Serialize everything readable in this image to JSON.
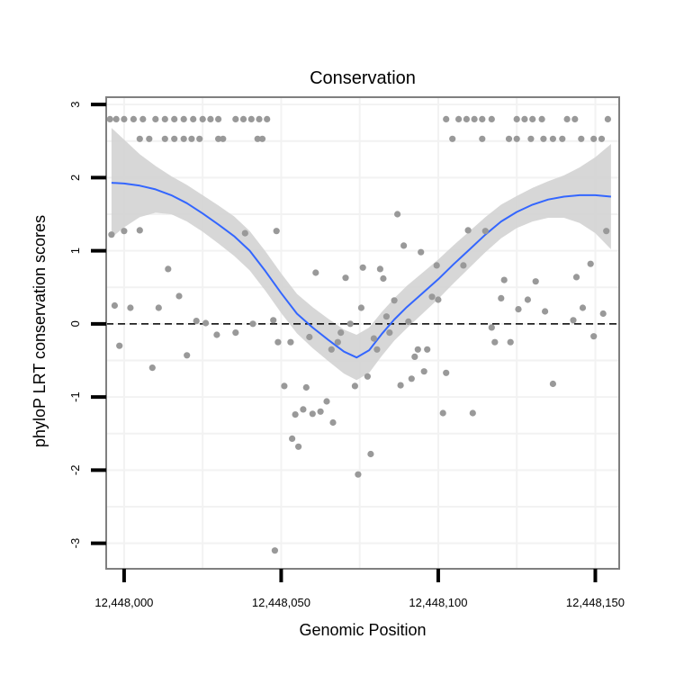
{
  "chart_data": {
    "type": "scatter",
    "title": "Conservation",
    "xlabel": "Genomic Position",
    "ylabel": "phyloP LRT conservation scores",
    "xlim": [
      12447994.3,
      12448157.6
    ],
    "ylim": [
      -3.35,
      3.1
    ],
    "x_ticks": [
      12448000,
      12448050,
      12448100,
      12448150
    ],
    "x_tick_labels": [
      "12,448,000",
      "12,448,050",
      "12,448,100",
      "12,448,150"
    ],
    "y_ticks": [
      -3,
      -2,
      -1,
      0,
      1,
      2,
      3
    ],
    "y_tick_labels": [
      "-3",
      "-2",
      "-1",
      "0",
      "1",
      "2",
      "3"
    ],
    "reference_line_y": 0,
    "colors": {
      "points": "#999999",
      "smooth_line": "#3366FF",
      "confidence_band": "#D3D3D3",
      "grid": "#F2F2F2",
      "frame": "#7F7F7F",
      "reference_line": "#000000"
    },
    "points": [
      {
        "x": 12447995.5,
        "y": 2.8
      },
      {
        "x": 12447997.5,
        "y": 2.8
      },
      {
        "x": 12448000.0,
        "y": 2.8
      },
      {
        "x": 12448003.0,
        "y": 2.8
      },
      {
        "x": 12448006.0,
        "y": 2.8
      },
      {
        "x": 12448010.0,
        "y": 2.8
      },
      {
        "x": 12448013.0,
        "y": 2.8
      },
      {
        "x": 12448016.0,
        "y": 2.8
      },
      {
        "x": 12448019.0,
        "y": 2.8
      },
      {
        "x": 12448022.0,
        "y": 2.8
      },
      {
        "x": 12448025.0,
        "y": 2.8
      },
      {
        "x": 12448027.5,
        "y": 2.8
      },
      {
        "x": 12448030.0,
        "y": 2.8
      },
      {
        "x": 12448035.5,
        "y": 2.8
      },
      {
        "x": 12448038.0,
        "y": 2.8
      },
      {
        "x": 12448040.5,
        "y": 2.8
      },
      {
        "x": 12448043.0,
        "y": 2.8
      },
      {
        "x": 12448045.5,
        "y": 2.8
      },
      {
        "x": 12448005.0,
        "y": 2.53
      },
      {
        "x": 12448008.0,
        "y": 2.53
      },
      {
        "x": 12448013.0,
        "y": 2.53
      },
      {
        "x": 12448016.0,
        "y": 2.53
      },
      {
        "x": 12448019.0,
        "y": 2.53
      },
      {
        "x": 12448021.5,
        "y": 2.53
      },
      {
        "x": 12448024.0,
        "y": 2.53
      },
      {
        "x": 12448030.0,
        "y": 2.53
      },
      {
        "x": 12448031.5,
        "y": 2.53
      },
      {
        "x": 12448042.5,
        "y": 2.53
      },
      {
        "x": 12448044.0,
        "y": 2.53
      },
      {
        "x": 12448102.5,
        "y": 2.8
      },
      {
        "x": 12448106.5,
        "y": 2.8
      },
      {
        "x": 12448109.0,
        "y": 2.8
      },
      {
        "x": 12448111.5,
        "y": 2.8
      },
      {
        "x": 12448114.0,
        "y": 2.8
      },
      {
        "x": 12448117.0,
        "y": 2.8
      },
      {
        "x": 12448125.0,
        "y": 2.8
      },
      {
        "x": 12448127.5,
        "y": 2.8
      },
      {
        "x": 12448130.0,
        "y": 2.8
      },
      {
        "x": 12448133.0,
        "y": 2.8
      },
      {
        "x": 12448141.0,
        "y": 2.8
      },
      {
        "x": 12448143.5,
        "y": 2.8
      },
      {
        "x": 12448154.0,
        "y": 2.8
      },
      {
        "x": 12448104.5,
        "y": 2.53
      },
      {
        "x": 12448114.0,
        "y": 2.53
      },
      {
        "x": 12448122.5,
        "y": 2.53
      },
      {
        "x": 12448125.0,
        "y": 2.53
      },
      {
        "x": 12448129.5,
        "y": 2.53
      },
      {
        "x": 12448133.5,
        "y": 2.53
      },
      {
        "x": 12448136.5,
        "y": 2.53
      },
      {
        "x": 12448139.5,
        "y": 2.53
      },
      {
        "x": 12448145.5,
        "y": 2.53
      },
      {
        "x": 12448149.5,
        "y": 2.53
      },
      {
        "x": 12448152.0,
        "y": 2.53
      },
      {
        "x": 12447996.0,
        "y": 1.22
      },
      {
        "x": 12448000.0,
        "y": 1.27
      },
      {
        "x": 12448005.0,
        "y": 1.28
      },
      {
        "x": 12447997.0,
        "y": 0.25
      },
      {
        "x": 12448002.0,
        "y": 0.22
      },
      {
        "x": 12447998.5,
        "y": -0.3
      },
      {
        "x": 12448009.0,
        "y": -0.6
      },
      {
        "x": 12448014.0,
        "y": 0.75
      },
      {
        "x": 12448017.5,
        "y": 0.38
      },
      {
        "x": 12448011.0,
        "y": 0.22
      },
      {
        "x": 12448020.0,
        "y": -0.43
      },
      {
        "x": 12448023.0,
        "y": 0.04
      },
      {
        "x": 12448026.0,
        "y": 0.01
      },
      {
        "x": 12448029.5,
        "y": -0.15
      },
      {
        "x": 12448035.5,
        "y": -0.12
      },
      {
        "x": 12448038.5,
        "y": 1.24
      },
      {
        "x": 12448041.0,
        "y": 0.0
      },
      {
        "x": 12448047.5,
        "y": 0.05
      },
      {
        "x": 12448048.5,
        "y": 1.27
      },
      {
        "x": 12448049.0,
        "y": -0.25
      },
      {
        "x": 12448051.0,
        "y": -0.85
      },
      {
        "x": 12448053.0,
        "y": -0.25
      },
      {
        "x": 12448048.0,
        "y": -3.1
      },
      {
        "x": 12448053.5,
        "y": -1.57
      },
      {
        "x": 12448054.5,
        "y": -1.24
      },
      {
        "x": 12448055.5,
        "y": -1.68
      },
      {
        "x": 12448057.0,
        "y": -1.17
      },
      {
        "x": 12448058.0,
        "y": -0.87
      },
      {
        "x": 12448059.0,
        "y": -0.18
      },
      {
        "x": 12448061.0,
        "y": 0.7
      },
      {
        "x": 12448060.0,
        "y": -1.23
      },
      {
        "x": 12448062.5,
        "y": -1.2
      },
      {
        "x": 12448064.5,
        "y": -1.06
      },
      {
        "x": 12448066.0,
        "y": -0.35
      },
      {
        "x": 12448066.5,
        "y": -1.35
      },
      {
        "x": 12448068.0,
        "y": -0.25
      },
      {
        "x": 12448069.0,
        "y": -0.12
      },
      {
        "x": 12448070.5,
        "y": 0.63
      },
      {
        "x": 12448072.0,
        "y": 0.0
      },
      {
        "x": 12448073.5,
        "y": -0.85
      },
      {
        "x": 12448074.5,
        "y": -2.06
      },
      {
        "x": 12448075.5,
        "y": 0.22
      },
      {
        "x": 12448076.0,
        "y": 0.77
      },
      {
        "x": 12448077.5,
        "y": -0.72
      },
      {
        "x": 12448078.5,
        "y": -1.78
      },
      {
        "x": 12448079.5,
        "y": -0.2
      },
      {
        "x": 12448080.5,
        "y": -0.35
      },
      {
        "x": 12448081.5,
        "y": 0.75
      },
      {
        "x": 12448082.5,
        "y": 0.62
      },
      {
        "x": 12448083.5,
        "y": 0.1
      },
      {
        "x": 12448084.5,
        "y": -0.12
      },
      {
        "x": 12448086.0,
        "y": 0.32
      },
      {
        "x": 12448087.0,
        "y": 1.5
      },
      {
        "x": 12448088.0,
        "y": -0.84
      },
      {
        "x": 12448089.0,
        "y": 1.07
      },
      {
        "x": 12448090.5,
        "y": 0.03
      },
      {
        "x": 12448091.5,
        "y": -0.75
      },
      {
        "x": 12448092.5,
        "y": -0.45
      },
      {
        "x": 12448093.5,
        "y": -0.35
      },
      {
        "x": 12448094.5,
        "y": 0.98
      },
      {
        "x": 12448095.5,
        "y": -0.65
      },
      {
        "x": 12448096.5,
        "y": -0.35
      },
      {
        "x": 12448098.0,
        "y": 0.37
      },
      {
        "x": 12448099.5,
        "y": 0.8
      },
      {
        "x": 12448100.0,
        "y": 0.33
      },
      {
        "x": 12448101.5,
        "y": -1.22
      },
      {
        "x": 12448102.5,
        "y": -0.67
      },
      {
        "x": 12448108.0,
        "y": 0.8
      },
      {
        "x": 12448109.5,
        "y": 1.28
      },
      {
        "x": 12448111.0,
        "y": -1.22
      },
      {
        "x": 12448115.0,
        "y": 1.27
      },
      {
        "x": 12448117.0,
        "y": -0.05
      },
      {
        "x": 12448118.0,
        "y": -0.25
      },
      {
        "x": 12448120.0,
        "y": 0.35
      },
      {
        "x": 12448121.0,
        "y": 0.6
      },
      {
        "x": 12448123.0,
        "y": -0.25
      },
      {
        "x": 12448125.5,
        "y": 0.2
      },
      {
        "x": 12448128.5,
        "y": 0.33
      },
      {
        "x": 12448131.0,
        "y": 0.58
      },
      {
        "x": 12448134.0,
        "y": 0.17
      },
      {
        "x": 12448136.5,
        "y": -0.82
      },
      {
        "x": 12448143.0,
        "y": 0.05
      },
      {
        "x": 12448144.0,
        "y": 0.64
      },
      {
        "x": 12448146.0,
        "y": 0.22
      },
      {
        "x": 12448148.5,
        "y": 0.82
      },
      {
        "x": 12448149.5,
        "y": -0.17
      },
      {
        "x": 12448152.5,
        "y": 0.14
      },
      {
        "x": 12448153.5,
        "y": 1.27
      }
    ],
    "smooth_line": {
      "x": [
        12447996,
        12448000,
        12448005,
        12448010,
        12448015,
        12448020,
        12448025,
        12448030,
        12448035,
        12448040,
        12448045,
        12448050,
        12448055,
        12448060,
        12448065,
        12448070,
        12448074,
        12448078,
        12448082,
        12448086,
        12448090,
        12448095,
        12448100,
        12448105,
        12448110,
        12448115,
        12448120,
        12448125,
        12448130,
        12448135,
        12448140,
        12448145,
        12448150,
        12448155
      ],
      "y": [
        1.93,
        1.92,
        1.89,
        1.84,
        1.76,
        1.65,
        1.51,
        1.36,
        1.2,
        1.0,
        0.72,
        0.42,
        0.14,
        -0.05,
        -0.22,
        -0.38,
        -0.46,
        -0.36,
        -0.14,
        0.06,
        0.23,
        0.42,
        0.61,
        0.82,
        1.02,
        1.22,
        1.4,
        1.53,
        1.63,
        1.7,
        1.74,
        1.76,
        1.76,
        1.74
      ]
    },
    "confidence_band": {
      "x": [
        12447996,
        12448000,
        12448005,
        12448010,
        12448015,
        12448020,
        12448025,
        12448030,
        12448035,
        12448040,
        12448045,
        12448050,
        12448055,
        12448060,
        12448065,
        12448070,
        12448074,
        12448078,
        12448082,
        12448086,
        12448090,
        12448095,
        12448100,
        12448105,
        12448110,
        12448115,
        12448120,
        12448125,
        12448130,
        12448135,
        12448140,
        12448145,
        12448150,
        12448155
      ],
      "lower": [
        1.18,
        1.32,
        1.46,
        1.52,
        1.5,
        1.4,
        1.26,
        1.1,
        0.93,
        0.73,
        0.45,
        0.15,
        -0.13,
        -0.33,
        -0.51,
        -0.68,
        -0.77,
        -0.67,
        -0.44,
        -0.23,
        -0.06,
        0.14,
        0.34,
        0.56,
        0.77,
        0.98,
        1.17,
        1.31,
        1.4,
        1.45,
        1.45,
        1.38,
        1.24,
        1.02
      ],
      "upper": [
        2.68,
        2.52,
        2.32,
        2.16,
        2.02,
        1.9,
        1.76,
        1.62,
        1.47,
        1.27,
        0.99,
        0.69,
        0.41,
        0.23,
        0.07,
        -0.08,
        -0.15,
        -0.05,
        0.16,
        0.35,
        0.52,
        0.7,
        0.88,
        1.08,
        1.27,
        1.46,
        1.63,
        1.75,
        1.86,
        1.95,
        2.03,
        2.14,
        2.28,
        2.46
      ]
    }
  }
}
